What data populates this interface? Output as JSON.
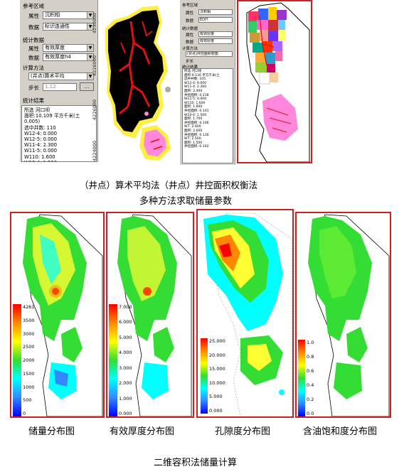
{
  "query_panel": {
    "reference_group": "参考区域",
    "attr_label": "属性",
    "attr_value": "沉积相",
    "data_label": "数据",
    "data_value": "标识连通性",
    "stat_group": "统计数据",
    "stat_attr_label": "属性",
    "stat_attr_value": "有效厚度",
    "stat_data_label": "数据",
    "stat_data_value": "有效厚度h4",
    "method_group": "计算方法",
    "method_value": "(井点)算术平均",
    "step_label": "步长",
    "step_value": "1.12",
    "browse_button": "...",
    "result_group": "统计结果",
    "result_lines": [
      "所选 河口坝",
      "面积:10.109 平方千米(土",
      "0.005)",
      "选中井数: 110",
      "W12-4: 0.000",
      "W12-5: 0.000",
      "W11-4: 2.300",
      "W11-5: 0.000",
      "W110: 1.600",
      "W10-4: 1.500",
      "W7: 2.600"
    ]
  },
  "panel2": {
    "reference_group": "参考区域",
    "attr_label": "属性",
    "attr_value": "沉积相",
    "data_label": "数据",
    "data_value": "EDIT",
    "stat_group": "统计数据",
    "stat_attr_label": "属性",
    "stat_attr_value": "有效厚度",
    "stat_data_label": "数据",
    "stat_data_value": "有效厚度",
    "method_group": "计算方法",
    "method_value": "(井点)井控面积权衡",
    "step_label": "步长",
    "result_group": "统计结果",
    "result_lines": [
      "所选 河口坝",
      "面积:9.130 平方千米(土",
      "选中井数: 105",
      "W12-4: 0.000",
      "W11-4: 2.300",
      "面积: 2.400",
      "井控面积: 0.218",
      "W11-5: 0.000",
      "W110: 1.600",
      "面积: 1.600",
      "井控面积: 0.101",
      "W10-4: 1.500",
      "面积: 1.700",
      "井控面积: 0.106",
      "W7: 2.600",
      "面积: 2.600",
      "井控面积: 0.130",
      "W7: 2.500",
      "面积: 1.500",
      "井控面积: 0.102"
    ]
  },
  "axis_ticks": [
    "4230000",
    "4228000",
    "4226000",
    "4224000"
  ],
  "captions": {
    "methods": "（井点）算术平均法（井点）井控面积权衡法",
    "methods_sub": "多种方法求取储量参数",
    "maps": [
      "储量分布图",
      "有效厚度分布图",
      "孔隙度分布图",
      "含油饱和度分布图"
    ],
    "bottom_title": "二维容积法储量计算"
  },
  "legends": {
    "reserves": [
      "4261",
      "3500",
      "3000",
      "2500",
      "2000",
      "1500",
      "1000",
      "500",
      "0"
    ],
    "thickness": [
      "7.000",
      "6.000",
      "5.000",
      "4.000",
      "3.000",
      "2.000",
      "1.000",
      "0.000"
    ],
    "porosity": [
      "25.000",
      "20.000",
      "15.000",
      "10.000",
      "5.000",
      "0.000"
    ],
    "saturation": [
      "1.0",
      "0.8",
      "0.6",
      "0.4",
      "0.2",
      "0.0"
    ]
  },
  "colors": {
    "frame": "#d02020",
    "rainbow": [
      "#ff0000",
      "#ff8800",
      "#ffff00",
      "#33dd33",
      "#00ffff",
      "#3388ff",
      "#0000ff"
    ]
  }
}
